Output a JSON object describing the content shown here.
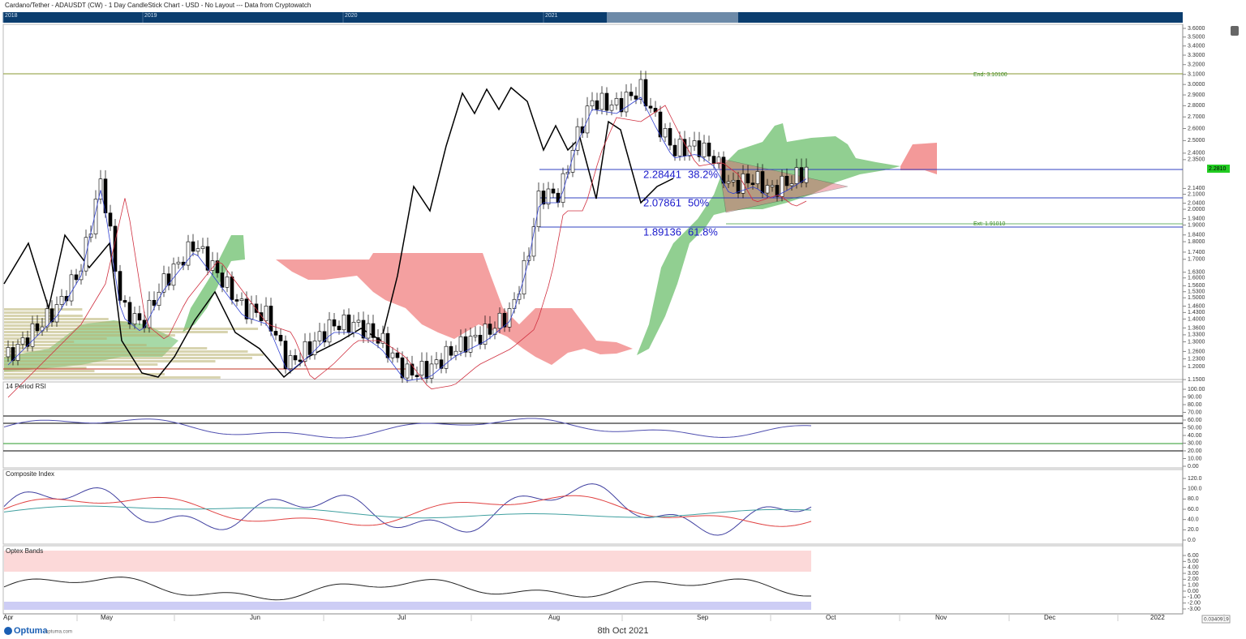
{
  "header": {
    "title": "Cardano/Tether - ADAUSDT (CW) - 1 Day CandleStick Chart - USD - No Layout --- Data from Cryptowatch"
  },
  "navigator": {
    "years": [
      "2018",
      "2019",
      "2020",
      "2021"
    ]
  },
  "main_panel": {
    "price_axis": [
      "3.6000",
      "3.5000",
      "3.4000",
      "3.3000",
      "3.2000",
      "3.1000",
      "3.0000",
      "2.9000",
      "2.8000",
      "2.7000",
      "2.6000",
      "2.5000",
      "2.4000",
      "2.3500",
      "2.1400",
      "2.1000",
      "2.0400",
      "2.0000",
      "1.9400",
      "1.9000",
      "1.8400",
      "1.8000",
      "1.7400",
      "1.7000",
      "1.6300",
      "1.6000",
      "1.5600",
      "1.5300",
      "1.5000",
      "1.4600",
      "1.4300",
      "1.4000",
      "1.3600",
      "1.3300",
      "1.3000",
      "1.2600",
      "1.2300",
      "1.2000",
      "1.1500"
    ],
    "current_price": "2.2810",
    "end_label": "End: 3.10100",
    "ext_label": "Ext: 1.91010",
    "fib_levels": [
      {
        "price": "2.28441",
        "ratio": "38.2%"
      },
      {
        "price": "2.07861",
        "ratio": "50%"
      },
      {
        "price": "1.89136",
        "ratio": "61.8%"
      }
    ]
  },
  "rsi_panel": {
    "label": "14 Period RSI",
    "axis": [
      "100.00",
      "90.00",
      "80.00",
      "70.00",
      "60.00",
      "50.00",
      "40.00",
      "30.00",
      "20.00",
      "10.00",
      "0.00"
    ]
  },
  "composite_panel": {
    "label": "Composite Index",
    "axis": [
      "120.0",
      "100.0",
      "80.0",
      "60.0",
      "40.0",
      "20.0",
      "0.0"
    ]
  },
  "optex_panel": {
    "label": "Optex Bands",
    "axis": [
      "6.00",
      "5.00",
      "4.00",
      "3.00",
      "2.00",
      "1.00",
      "0.00",
      "-1.00",
      "-2.00",
      "-3.00"
    ]
  },
  "time_axis": [
    "Apr",
    "May",
    "Jun",
    "Jul",
    "Aug",
    "Sep",
    "Oct",
    "Nov",
    "Dec",
    "2022"
  ],
  "footer": {
    "brand": "Optuma",
    "site": "optuma.com",
    "date": "8th Oct 2021",
    "readout": "0.0340919"
  }
}
